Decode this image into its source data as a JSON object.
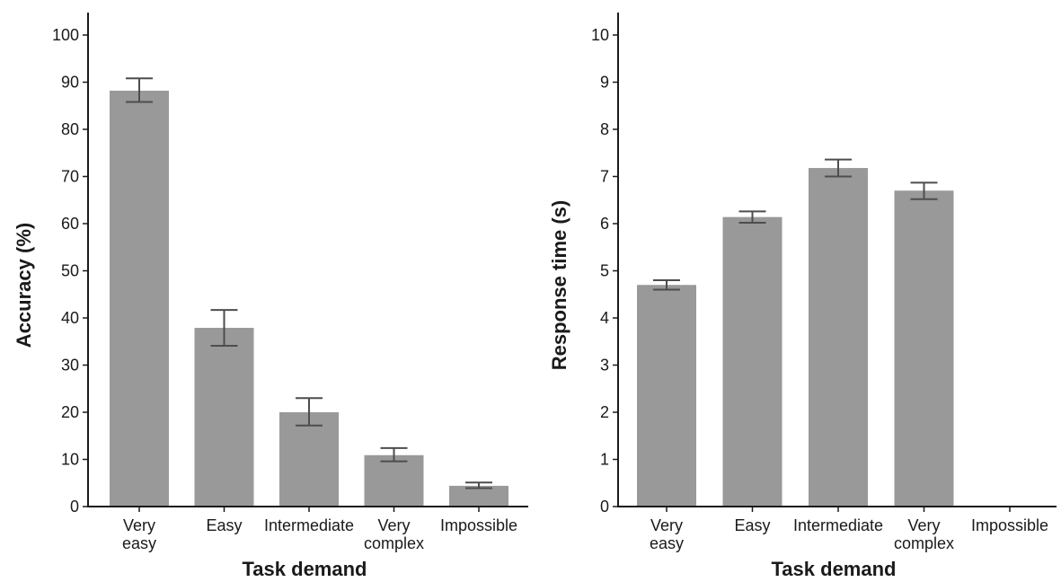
{
  "chart_data": [
    {
      "type": "bar",
      "categories": [
        [
          "Very",
          "easy"
        ],
        [
          "Easy"
        ],
        [
          "Intermediate"
        ],
        [
          "Very",
          "complex"
        ],
        [
          "Impossible"
        ]
      ],
      "values": [
        88.2,
        37.9,
        20.0,
        10.9,
        4.4
      ],
      "error_low": [
        85.8,
        34.1,
        17.2,
        9.6,
        3.9
      ],
      "error_high": [
        90.8,
        41.7,
        23.0,
        12.4,
        5.1
      ],
      "xlabel": "Task demand",
      "ylabel": "Accuracy (%)",
      "ylim": [
        0,
        100
      ],
      "yticks": [
        0,
        10,
        20,
        30,
        40,
        50,
        60,
        70,
        80,
        90,
        100
      ],
      "bar_color": "#999999",
      "error_color": "#4d4d4d",
      "grid": false,
      "legend": "none"
    },
    {
      "type": "bar",
      "categories": [
        [
          "Very",
          "easy"
        ],
        [
          "Easy"
        ],
        [
          "Intermediate"
        ],
        [
          "Very",
          "complex"
        ],
        [
          "Impossible"
        ]
      ],
      "values": [
        4.7,
        6.14,
        7.18,
        6.7,
        null
      ],
      "error_low": [
        4.6,
        6.02,
        7.0,
        6.52,
        null
      ],
      "error_high": [
        4.8,
        6.26,
        7.36,
        6.87,
        null
      ],
      "xlabel": "Task demand",
      "ylabel": "Response time (s)",
      "ylim": [
        0,
        10
      ],
      "yticks": [
        0,
        1,
        2,
        3,
        4,
        5,
        6,
        7,
        8,
        9,
        10
      ],
      "bar_color": "#999999",
      "error_color": "#4d4d4d",
      "grid": false,
      "legend": "none"
    }
  ]
}
